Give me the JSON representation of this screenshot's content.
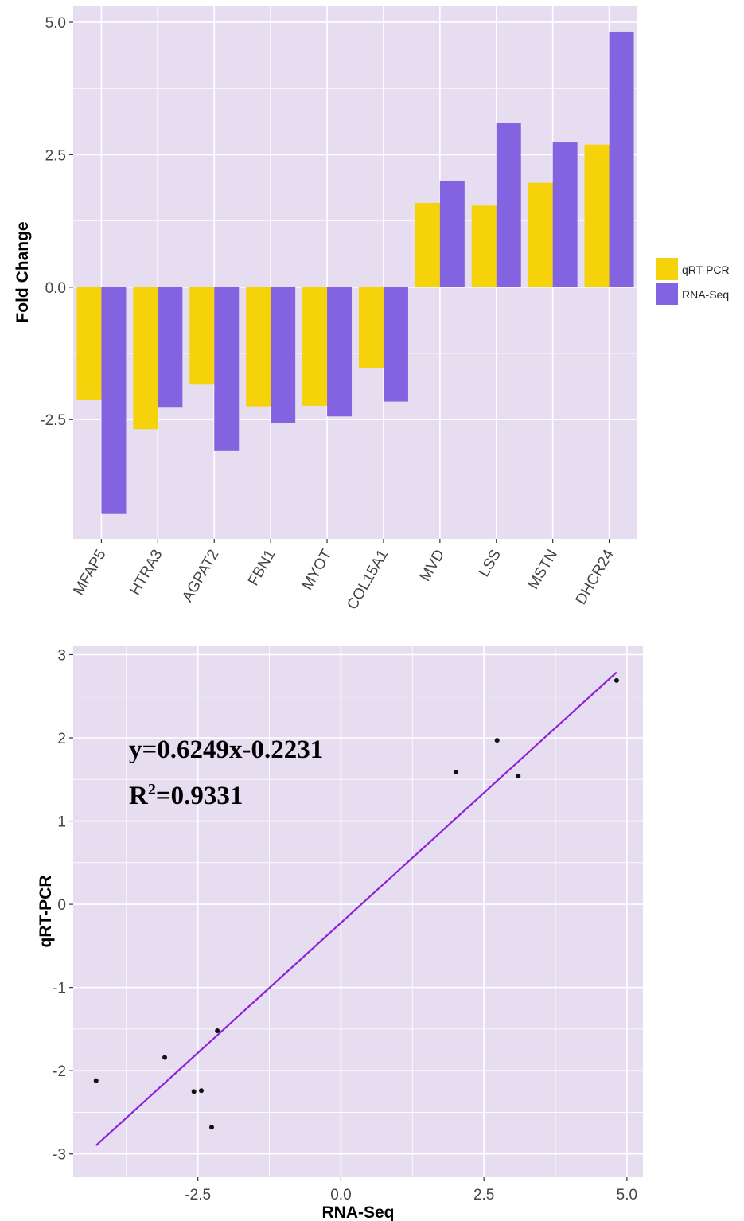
{
  "colors": {
    "panel_bg": "#e6def0",
    "grid": "#ffffff",
    "qrtpcr": "#f5d20a",
    "rnaseq": "#8363e0",
    "fit_line": "#8f1fd8",
    "point": "#111111"
  },
  "chart_data": [
    {
      "type": "bar",
      "ylabel": "Fold Change",
      "xlabel": "",
      "categories": [
        "MFAP5",
        "HTRA3",
        "AGPAT2",
        "FBN1",
        "MYOT",
        "COL15A1",
        "MVD",
        "LSS",
        "MSTN",
        "DHCR24"
      ],
      "series": [
        {
          "name": "qRT-PCR",
          "values": [
            -2.12,
            -2.68,
            -1.84,
            -2.25,
            -2.24,
            -1.52,
            1.59,
            1.54,
            1.97,
            2.69
          ]
        },
        {
          "name": "RNA-Seq",
          "values": [
            -4.28,
            -2.26,
            -3.08,
            -2.57,
            -2.44,
            -2.16,
            2.01,
            3.1,
            2.73,
            4.82
          ]
        }
      ],
      "ylim": [
        -4.75,
        5.3
      ],
      "yticks": [
        "5.0",
        "2.5",
        "0.0",
        "-2.5"
      ],
      "legend": {
        "position": "right",
        "entries": [
          "qRT-PCR",
          "RNA-Seq"
        ]
      },
      "grid": true
    },
    {
      "type": "scatter",
      "xlabel": "RNA-Seq",
      "ylabel": "qRT-PCR",
      "x": [
        -4.28,
        -2.26,
        -3.08,
        -2.57,
        -2.44,
        -2.16,
        2.01,
        3.1,
        2.73,
        4.82
      ],
      "y": [
        -2.12,
        -2.68,
        -1.84,
        -2.25,
        -2.24,
        -1.52,
        1.59,
        1.54,
        1.97,
        2.69
      ],
      "xlim": [
        -4.68,
        5.28
      ],
      "ylim": [
        -3.28,
        3.1
      ],
      "xticks": [
        "-2.5",
        "0.0",
        "2.5",
        "5.0"
      ],
      "yticks": [
        "3",
        "2",
        "1",
        "0",
        "-1",
        "-2",
        "-3"
      ],
      "fit": {
        "slope": 0.6249,
        "intercept": -0.2231,
        "x_range": [
          -4.28,
          4.82
        ]
      },
      "equation": "y=0.6249x-0.2231",
      "r2_prefix": "R",
      "r2_sup": "2",
      "r2_value": "=0.9331",
      "grid": true
    }
  ]
}
